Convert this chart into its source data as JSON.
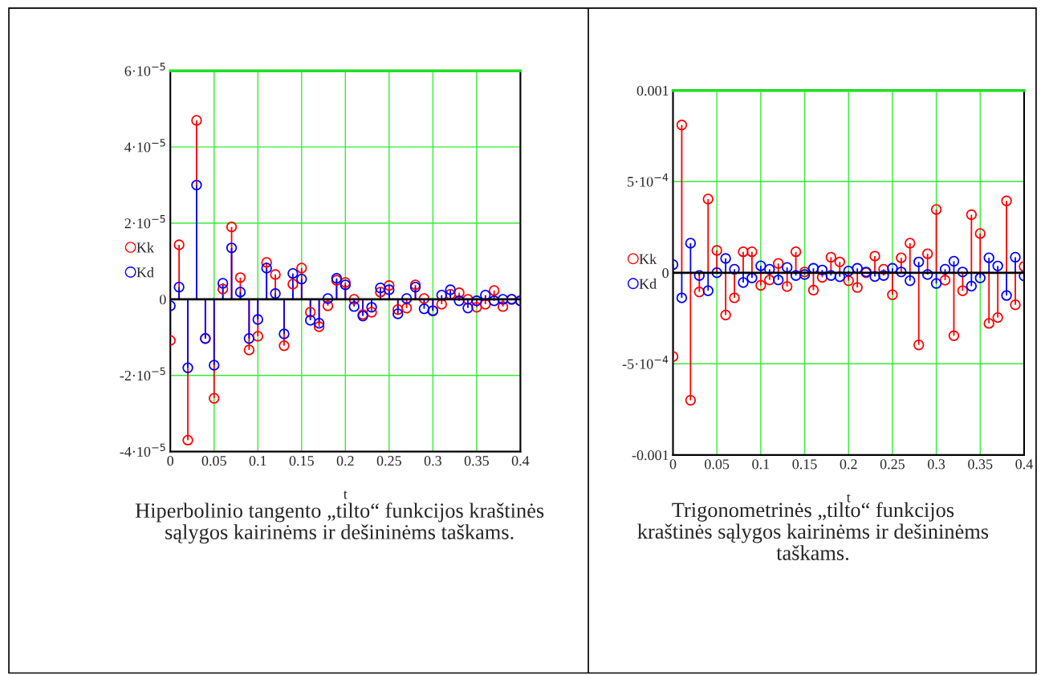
{
  "chart_data": [
    {
      "type": "lollipop",
      "xlabel": "t",
      "x": [
        0,
        0.01,
        0.02,
        0.03,
        0.04,
        0.05,
        0.06,
        0.07,
        0.08,
        0.09,
        0.1,
        0.11,
        0.12,
        0.13,
        0.14,
        0.15,
        0.16,
        0.17,
        0.18,
        0.19,
        0.2,
        0.21,
        0.22,
        0.23,
        0.24,
        0.25,
        0.26,
        0.27,
        0.28,
        0.29,
        0.3,
        0.31,
        0.32,
        0.33,
        0.34,
        0.35,
        0.36,
        0.37,
        0.38,
        0.39,
        0.4
      ],
      "series": [
        {
          "name": "Kk",
          "color": "#ff0000",
          "values": [
            -1.08e-05,
            1.43e-05,
            -3.7e-05,
            4.7e-05,
            -1.03e-05,
            -2.6e-05,
            2.7e-06,
            1.9e-05,
            5.7e-06,
            -1.33e-05,
            -9.7e-06,
            9.7e-06,
            6.5e-06,
            -1.22e-05,
            4e-06,
            8.2e-06,
            -3.4e-06,
            -7.2e-06,
            -1.7e-06,
            5e-06,
            4.4e-06,
            0.0,
            -4e-06,
            -3.4e-06,
            1.9e-06,
            3.6e-06,
            -2.7e-06,
            -2.3e-06,
            3.8e-06,
            2e-07,
            -3e-06,
            -1.3e-06,
            1.3e-06,
            1.7e-06,
            0.0,
            -2.1e-06,
            -1.3e-06,
            2.3e-06,
            -1.9e-06,
            0.0,
            -4e-07
          ]
        },
        {
          "name": "Kd",
          "color": "#0000ff",
          "values": [
            -1.7e-06,
            3.2e-06,
            -1.8e-05,
            3e-05,
            -1.03e-05,
            -1.73e-05,
            4.2e-06,
            1.35e-05,
            1.9e-06,
            -1.03e-05,
            -5.3e-06,
            8.2e-06,
            1.5e-06,
            -9.1e-06,
            6.8e-06,
            5.3e-06,
            -5.5e-06,
            -6.3e-06,
            2e-07,
            5.5e-06,
            3.8e-06,
            -1.9e-06,
            -4.4e-06,
            -2.1e-06,
            3e-06,
            2.5e-06,
            -3.8e-06,
            2e-07,
            3.2e-06,
            -2.5e-06,
            -3e-06,
            1.1e-06,
            2.5e-06,
            -4e-07,
            -2.3e-06,
            -4e-07,
            1.1e-06,
            -4e-07,
            0.0,
            0.0,
            -4e-07
          ]
        }
      ],
      "xlim": [
        0,
        0.4
      ],
      "xticks": [
        0,
        0.05,
        0.1,
        0.15,
        0.2,
        0.25,
        0.3,
        0.35,
        0.4
      ],
      "ylim": [
        -4e-05,
        6e-05
      ],
      "yticks": [
        {
          "value": -4e-05,
          "label": "-4·10$^{−5}$"
        },
        {
          "value": -2e-05,
          "label": "-2·10$^{−5}$"
        },
        0,
        {
          "value": 2e-05,
          "label": "2·10$^{−5}$"
        },
        {
          "value": 4e-05,
          "label": "4·10$^{−5}$"
        },
        {
          "value": 6e-05,
          "label": "6·10$^{−5}$"
        }
      ],
      "ref_lines": [
        {
          "axis": "y",
          "value": 0,
          "color": "#000000"
        }
      ],
      "grid": true,
      "legend": "left",
      "marker": "circle",
      "annotations": [
        "Hiperbolinio tangento „tilto“ funkcijos kraštinės\nsąlygos kairinėms ir dešininėms taškams."
      ]
    },
    {
      "type": "lollipop",
      "xlabel": "t",
      "x": [
        0,
        0.01,
        0.02,
        0.03,
        0.04,
        0.05,
        0.06,
        0.07,
        0.08,
        0.09,
        0.1,
        0.11,
        0.12,
        0.13,
        0.14,
        0.15,
        0.16,
        0.17,
        0.18,
        0.19,
        0.2,
        0.21,
        0.22,
        0.23,
        0.24,
        0.25,
        0.26,
        0.27,
        0.28,
        0.29,
        0.3,
        0.31,
        0.32,
        0.33,
        0.34,
        0.35,
        0.36,
        0.37,
        0.38,
        0.39,
        0.4
      ],
      "series": [
        {
          "name": "Kk",
          "color": "#ff0000",
          "values": [
            -0.00046,
            0.00081,
            -0.0007,
            -0.000106,
            0.000404,
            0.000122,
            -0.000232,
            -0.000138,
            0.000115,
            0.000115,
            -6.9e-05,
            -4e-05,
            5.1e-05,
            -7.6e-05,
            0.000115,
            4e-06,
            -9.6e-05,
            -2.5e-05,
            8.5e-05,
            5.9e-05,
            -4.4e-05,
            -8.1e-05,
            0.0,
            9.1e-05,
            1.9e-05,
            -0.000121,
            8.2e-05,
            0.000162,
            -0.000396,
            0.000104,
            0.000347,
            -4.1e-05,
            -0.000346,
            -9.9e-05,
            0.000318,
            0.000215,
            -0.000278,
            -0.000246,
            0.000394,
            -0.000176,
            3.4e-05
          ]
        },
        {
          "name": "Kd",
          "color": "#0000ff",
          "values": [
            4.4e-05,
            -0.000138,
            0.000162,
            -1.5e-05,
            -9.9e-05,
            0.0,
            7.8e-05,
            1.9e-05,
            -5.4e-05,
            -2.9e-05,
            3.8e-05,
            1.9e-05,
            -4e-05,
            2.9e-05,
            -1.5e-05,
            -1e-05,
            2.4e-05,
            1.5e-05,
            -1.5e-05,
            -2.2e-05,
            9e-06,
            2.4e-05,
            4e-06,
            -2.1e-05,
            -1.5e-05,
            2.4e-05,
            4e-06,
            -4.4e-05,
            5.9e-05,
            -1e-05,
            -5.9e-05,
            1.9e-05,
            6.3e-05,
            4e-06,
            -7.4e-05,
            -2.9e-05,
            8.2e-05,
            3.7e-05,
            -0.000125,
            8.5e-05,
            -1.8e-05
          ]
        }
      ],
      "xlim": [
        0,
        0.4
      ],
      "xticks": [
        0,
        0.05,
        0.1,
        0.15,
        0.2,
        0.25,
        0.3,
        0.35,
        0.4
      ],
      "ylim": [
        -0.001,
        0.001
      ],
      "yticks": [
        -0.001,
        {
          "value": -0.0005,
          "label": "-5·10$^{−4}$"
        },
        0,
        {
          "value": 0.0005,
          "label": "5·10$^{−4}$"
        },
        0.001
      ],
      "ref_lines": [
        {
          "axis": "y",
          "value": 0,
          "color": "#000000"
        }
      ],
      "grid": true,
      "legend": "left",
      "marker": "circle",
      "annotations": [
        "Trigonometrinės „tilto“ funkcijos\nkraštinės sąlygos kairinėms ir dešininėms\ntaškams."
      ]
    }
  ]
}
